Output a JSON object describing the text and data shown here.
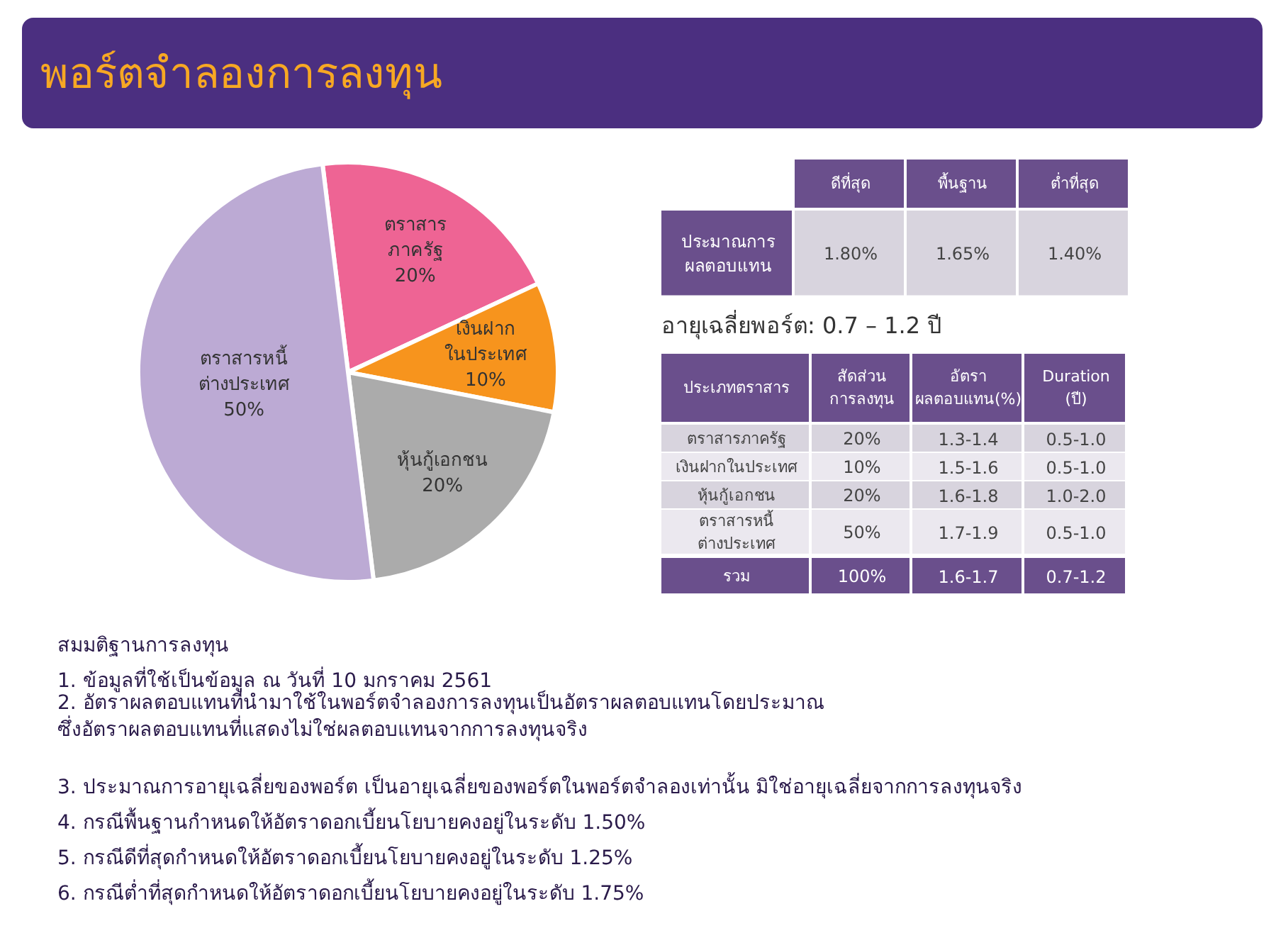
{
  "chart_data": [
    {
      "type": "pie",
      "title": "พอร์ตจำลองการลงทุน",
      "categories": [
        "ตราสาร\nภาครัฐ",
        "เงินฝาก\nในประเทศ",
        "หุ้นกู้เอกชน",
        "ตราสารหนี้\nต่างประเทศ"
      ],
      "values": [
        20,
        10,
        20,
        50
      ],
      "colors": [
        "#ee6494",
        "#f7941d",
        "#ababab",
        "#bcaad4"
      ],
      "value_labels": [
        "20%",
        "10%",
        "20%",
        "50%"
      ],
      "annotations": [
        "สมมติฐานการลงทุน",
        "1. ข้อมูลที่ใช้เป็นข้อมูล ณ วันที่ 10 มกราคม 2561",
        "2. อัตราผลตอบแทนที่นำมาใช้ในพอร์ตจำลองการลงทุนเป็นอัตราผลตอบแทนโดยประมาณ\n    ซึ่งอัตราผลตอบแทนที่แสดงไม่ใช่ผลตอบแทนจากการลงทุนจริง",
        "3. ประมาณการอายุเฉลี่ยของพอร์ต เป็นอายุเฉลี่ยของพอร์ตในพอร์ตจำลองเท่านั้น มิใช่อายุเฉลี่ยจากการลงทุนจริง",
        "4. กรณีพื้นฐานกำหนดให้อัตราดอกเบี้ยนโยบายคงอยู่ในระดับ 1.50%",
        "5. กรณีดีที่สุดกำหนดให้อัตราดอกเบี้ยนโยบายคงอยู่ในระดับ 1.25%",
        "6. กรณีต่ำที่สุดกำหนดให้อัตราดอกเบี้ยนโยบายคงอยู่ในระดับ 1.75%"
      ]
    },
    {
      "type": "other",
      "categories": [
        "ดีที่สุด",
        "พื้นฐาน",
        "ต่ำที่สุด"
      ],
      "y_categories": [
        "ประมาณการ\nผลตอบแทน"
      ],
      "cell_labels": [
        [
          "1.80%",
          "1.65%",
          "1.40%"
        ]
      ]
    },
    {
      "type": "other",
      "title": "อายุเฉลี่ยพอร์ต: 0.7 – 1.2 ปี",
      "ylabel": "ประเภทตราสาร",
      "categories": [
        "สัดส่วน\nการลงทุน",
        "อัตรา\nผลตอบแทน(%)",
        "Duration\n(ปี)"
      ],
      "y_categories": [
        "ตราสารภาครัฐ",
        "เงินฝากในประเทศ",
        "หุ้นกู้เอกชน",
        "ตราสารหนี้\nต่างประเทศ",
        "รวม"
      ],
      "cell_labels": [
        [
          "20%",
          "1.3-1.4",
          "0.5-1.0"
        ],
        [
          "10%",
          "1.5-1.6",
          "0.5-1.0"
        ],
        [
          "20%",
          "1.6-1.8",
          "1.0-2.0"
        ],
        [
          "50%",
          "1.7-1.9",
          "0.5-1.0"
        ]
      ],
      "totals": [
        "100%",
        "1.6-1.7",
        "0.7-1.2"
      ]
    }
  ]
}
